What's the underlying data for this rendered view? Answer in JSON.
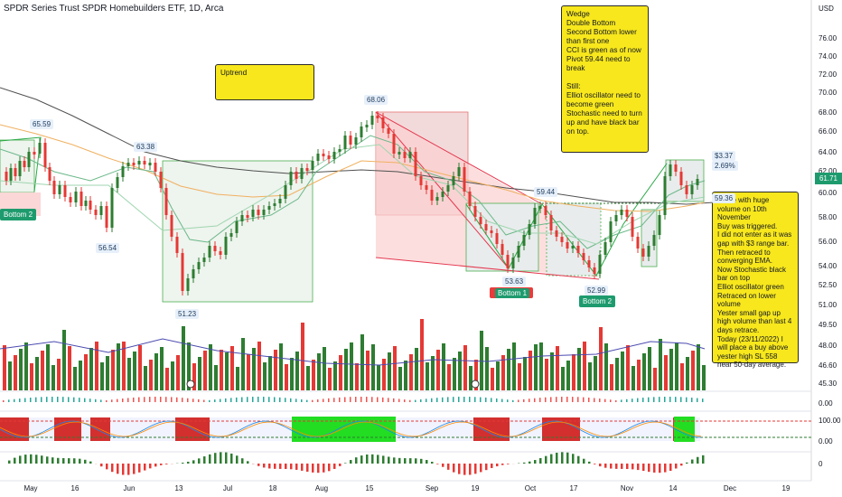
{
  "title": "SPDR Series Trust SPDR Homebuilders ETF, 1D, Arca",
  "currency": "USD",
  "current_price": "61.71",
  "colors": {
    "up": "#2e7d32",
    "down": "#e53935",
    "vol_up": "#2e7d32",
    "vol_down": "#e53935",
    "ma_long": "#505050",
    "ma_mid": "#f0b060",
    "ma_short": "#6ab889",
    "wedge": "#e53950",
    "note_bg": "#f7e71c",
    "cci_green": "#22dd22",
    "cci_red": "#e53935"
  },
  "annotations": {
    "uptrend": "Uptrend",
    "wedge_note": "Wedge\nDouble Bottom\nSecond Bottom lower than first one\nCCI is green as of now\nPivot 59.44 need to break\n\nStill:\nElliot oscillator need to become green\nStochastic need to turn up and have black bar on top.",
    "breakout_note": "Broke with huge volume on 10th November\nBuy was triggered.\nI did not enter as it was gap with $3 range bar.\nThen retraced to converging EMA.\nNow Stochastic black bar on top\nElliot oscillator green\nRetraced on lower volume\nYester small gap up high volume than last 4 days retrace.\nToday (23/11/2022) I will place a buy above yester high SL 558 near 50-day average."
  },
  "badges": {
    "bottom2_left": "Bottom 2",
    "bottom1": "Bottom 1",
    "bottom2": "Bottom 2"
  },
  "price_labels": {
    "p6559": "65.59",
    "p6338": "63.38",
    "p5654": "56.54",
    "p5123": "51.23",
    "p6806": "68.06",
    "p5944": "59.44",
    "p5363": "53.63",
    "p5299": "52.99",
    "p6337": "$3.37",
    "p269": "2.69%",
    "p5936": "59.36"
  },
  "chart_data": {
    "type": "candlestick",
    "price_axis": [
      "76.00",
      "74.00",
      "72.00",
      "70.00",
      "68.00",
      "66.00",
      "64.00",
      "62.00",
      "60.00",
      "58.00",
      "56.00",
      "54.00",
      "52.50",
      "51.00",
      "49.50",
      "48.00",
      "46.60",
      "45.30"
    ],
    "x_labels": [
      "May",
      "16",
      "Jun",
      "13",
      "Jul",
      "18",
      "Aug",
      "15",
      "Sep",
      "19",
      "Oct",
      "17",
      "Nov",
      "14",
      "Dec",
      "19"
    ],
    "volume_note": "volume histogram with moving average",
    "indicators": [
      {
        "name": "Elliott oscillator",
        "axis": [
          "0.00"
        ]
      },
      {
        "name": "Stochastic",
        "axis": [
          "100.00",
          "0.00"
        ]
      },
      {
        "name": "CCI histogram",
        "axis": [
          "0"
        ]
      }
    ],
    "key_points": [
      {
        "date": "early May",
        "price": 65.59
      },
      {
        "date": "early Jun",
        "price": 63.38
      },
      {
        "date": "late May",
        "price": 56.54
      },
      {
        "date": "mid Jun",
        "price": 51.23
      },
      {
        "date": "mid Aug",
        "price": 68.06
      },
      {
        "date": "late Sep",
        "price": 59.44
      },
      {
        "date": "late Sep",
        "price": 53.63
      },
      {
        "date": "mid Oct",
        "price": 52.99
      },
      {
        "date": "mid Nov",
        "price": 63.37
      }
    ],
    "last_price": 61.71
  }
}
